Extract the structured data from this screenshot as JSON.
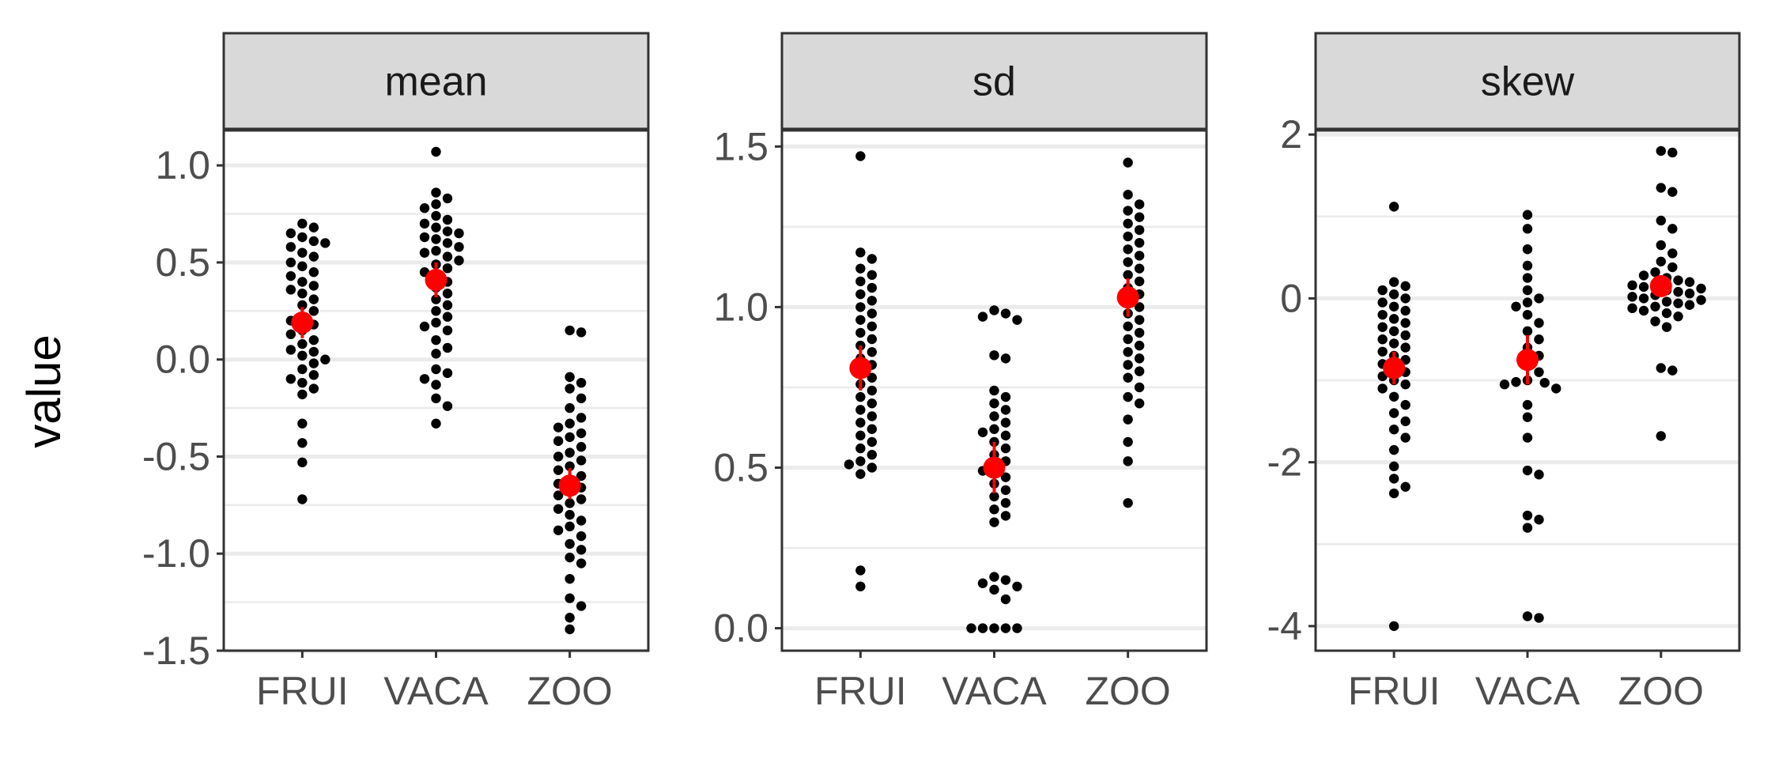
{
  "chart_data": {
    "type": "scatter",
    "ylabel": "value",
    "categories": [
      "FRUI",
      "VACA",
      "ZOO"
    ],
    "colors": {
      "points": "#000000",
      "summary": "#ff0000",
      "strip": "#d9d9d9",
      "grid": "#ebebeb",
      "border": "#333333"
    },
    "panels": [
      {
        "name": "mean",
        "ylim": [
          -1.5,
          1.18
        ],
        "yticks": [
          -1.5,
          -1.0,
          -0.5,
          0.0,
          0.5,
          1.0
        ],
        "ytick_labels": [
          "-1.5",
          "-1.0",
          "-0.5",
          "0.0",
          "0.5",
          "1.0"
        ],
        "groups": [
          {
            "category": "FRUI",
            "mean": 0.19,
            "lower": 0.11,
            "upper": 0.27,
            "points": [
              0.7,
              0.68,
              0.65,
              0.63,
              0.61,
              0.6,
              0.58,
              0.55,
              0.53,
              0.5,
              0.48,
              0.45,
              0.43,
              0.4,
              0.38,
              0.36,
              0.34,
              0.31,
              0.28,
              0.25,
              0.22,
              0.2,
              0.18,
              0.15,
              0.13,
              0.1,
              0.08,
              0.05,
              0.04,
              0.02,
              0.0,
              -0.02,
              -0.05,
              -0.08,
              -0.1,
              -0.12,
              -0.15,
              -0.18,
              -0.33,
              -0.43,
              -0.53,
              -0.72
            ]
          },
          {
            "category": "VACA",
            "mean": 0.41,
            "lower": 0.32,
            "upper": 0.5,
            "points": [
              1.07,
              0.86,
              0.83,
              0.8,
              0.78,
              0.74,
              0.72,
              0.7,
              0.68,
              0.66,
              0.65,
              0.63,
              0.62,
              0.6,
              0.58,
              0.56,
              0.55,
              0.53,
              0.51,
              0.49,
              0.47,
              0.45,
              0.43,
              0.4,
              0.37,
              0.34,
              0.31,
              0.28,
              0.25,
              0.22,
              0.19,
              0.17,
              0.15,
              0.1,
              0.06,
              0.03,
              -0.05,
              -0.07,
              -0.1,
              -0.13,
              -0.2,
              -0.24,
              -0.33
            ]
          },
          {
            "category": "ZOO",
            "mean": -0.65,
            "lower": -0.72,
            "upper": -0.56,
            "points": [
              0.15,
              0.14,
              -0.09,
              -0.12,
              -0.15,
              -0.2,
              -0.25,
              -0.3,
              -0.33,
              -0.35,
              -0.38,
              -0.4,
              -0.42,
              -0.45,
              -0.48,
              -0.5,
              -0.52,
              -0.55,
              -0.57,
              -0.6,
              -0.62,
              -0.64,
              -0.66,
              -0.68,
              -0.7,
              -0.72,
              -0.74,
              -0.77,
              -0.8,
              -0.83,
              -0.86,
              -0.88,
              -0.91,
              -0.95,
              -0.98,
              -1.02,
              -1.05,
              -1.13,
              -1.23,
              -1.27,
              -1.33,
              -1.39
            ]
          }
        ]
      },
      {
        "name": "sd",
        "ylim": [
          -0.07,
          1.55
        ],
        "yticks": [
          0.0,
          0.5,
          1.0,
          1.5
        ],
        "ytick_labels": [
          "0.0",
          "0.5",
          "1.0",
          "1.5"
        ],
        "groups": [
          {
            "category": "FRUI",
            "mean": 0.81,
            "lower": 0.74,
            "upper": 0.88,
            "points": [
              1.47,
              1.17,
              1.15,
              1.12,
              1.1,
              1.08,
              1.06,
              1.04,
              1.02,
              1.0,
              0.98,
              0.96,
              0.94,
              0.92,
              0.9,
              0.88,
              0.86,
              0.84,
              0.82,
              0.8,
              0.78,
              0.76,
              0.74,
              0.72,
              0.7,
              0.68,
              0.66,
              0.64,
              0.62,
              0.6,
              0.58,
              0.56,
              0.54,
              0.52,
              0.51,
              0.5,
              0.48,
              0.18,
              0.13
            ]
          },
          {
            "category": "VACA",
            "mean": 0.5,
            "lower": 0.42,
            "upper": 0.58,
            "points": [
              0.99,
              0.98,
              0.97,
              0.96,
              0.85,
              0.84,
              0.74,
              0.72,
              0.7,
              0.68,
              0.66,
              0.64,
              0.62,
              0.61,
              0.6,
              0.58,
              0.56,
              0.54,
              0.52,
              0.5,
              0.49,
              0.47,
              0.45,
              0.43,
              0.41,
              0.39,
              0.37,
              0.35,
              0.33,
              0.16,
              0.15,
              0.14,
              0.13,
              0.12,
              0.09,
              0.0,
              0.0,
              0.0,
              0.0,
              0.0
            ]
          },
          {
            "category": "ZOO",
            "mean": 1.03,
            "lower": 0.97,
            "upper": 1.09,
            "points": [
              1.45,
              1.35,
              1.32,
              1.3,
              1.28,
              1.26,
              1.24,
              1.22,
              1.2,
              1.18,
              1.16,
              1.14,
              1.12,
              1.1,
              1.08,
              1.06,
              1.04,
              1.02,
              1.0,
              0.98,
              0.96,
              0.94,
              0.92,
              0.9,
              0.88,
              0.86,
              0.84,
              0.82,
              0.8,
              0.78,
              0.75,
              0.72,
              0.7,
              0.65,
              0.58,
              0.52,
              0.39
            ]
          }
        ]
      },
      {
        "name": "skew",
        "ylim": [
          -4.3,
          2.05
        ],
        "yticks": [
          -4,
          -2,
          0,
          2
        ],
        "ytick_labels": [
          "-4",
          "-2",
          "0",
          "2"
        ],
        "groups": [
          {
            "category": "FRUI",
            "mean": -0.85,
            "lower": -1.05,
            "upper": -0.65,
            "points": [
              1.12,
              0.2,
              0.15,
              0.1,
              0.05,
              0.0,
              -0.05,
              -0.1,
              -0.15,
              -0.2,
              -0.25,
              -0.3,
              -0.35,
              -0.4,
              -0.45,
              -0.5,
              -0.55,
              -0.6,
              -0.65,
              -0.7,
              -0.75,
              -0.8,
              -0.85,
              -0.9,
              -0.95,
              -1.0,
              -1.05,
              -1.1,
              -1.2,
              -1.3,
              -1.4,
              -1.5,
              -1.6,
              -1.7,
              -1.85,
              -2.05,
              -2.2,
              -2.3,
              -2.38,
              -4.0
            ]
          },
          {
            "category": "VACA",
            "mean": -0.75,
            "lower": -1.05,
            "upper": -0.45,
            "points": [
              1.02,
              0.85,
              0.6,
              0.4,
              0.25,
              0.1,
              0.0,
              -0.05,
              -0.1,
              -0.2,
              -0.3,
              -0.4,
              -0.5,
              -0.6,
              -0.7,
              -0.8,
              -0.9,
              -1.0,
              -1.02,
              -1.03,
              -1.05,
              -1.1,
              -1.3,
              -1.45,
              -1.7,
              -2.1,
              -2.15,
              -2.65,
              -2.7,
              -2.8,
              -3.88,
              -3.9
            ]
          },
          {
            "category": "ZOO",
            "mean": 0.15,
            "lower": 0.05,
            "upper": 0.25,
            "points": [
              1.8,
              1.78,
              1.35,
              1.3,
              0.95,
              0.85,
              0.65,
              0.55,
              0.45,
              0.38,
              0.32,
              0.28,
              0.25,
              0.22,
              0.2,
              0.18,
              0.16,
              0.14,
              0.12,
              0.1,
              0.08,
              0.06,
              0.04,
              0.02,
              0.0,
              -0.02,
              -0.04,
              -0.06,
              -0.08,
              -0.1,
              -0.12,
              -0.15,
              -0.18,
              -0.22,
              -0.28,
              -0.35,
              -0.85,
              -0.88,
              -1.68
            ]
          }
        ]
      }
    ]
  }
}
